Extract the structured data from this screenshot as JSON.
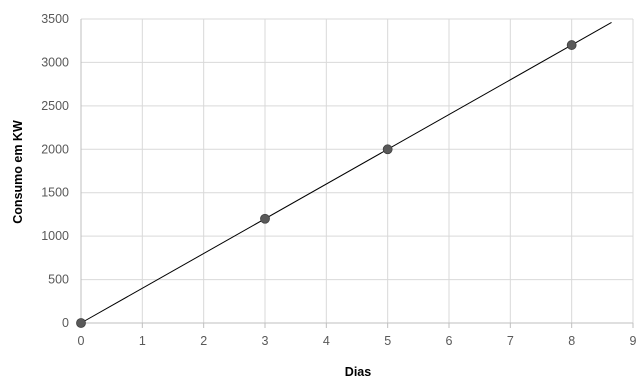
{
  "chart_data": {
    "type": "scatter",
    "title": "",
    "xlabel": "Dias",
    "ylabel": "Consumo em KW",
    "xlim": [
      0,
      9
    ],
    "ylim": [
      0,
      3500
    ],
    "x_ticks": [
      0,
      1,
      2,
      3,
      4,
      5,
      6,
      7,
      8,
      9
    ],
    "y_ticks": [
      0,
      500,
      1000,
      1500,
      2000,
      2500,
      3000,
      3500
    ],
    "x_tick_labels": [
      "0",
      "1",
      "2",
      "3",
      "4",
      "5",
      "6",
      "7",
      "8",
      "9"
    ],
    "y_tick_labels": [
      "0",
      "500",
      "1000",
      "1500",
      "2000",
      "2500",
      "3000",
      "3500"
    ],
    "grid": true,
    "legend": "none",
    "series": [
      {
        "x": [
          0,
          3,
          5,
          8
        ],
        "y": [
          0,
          1200,
          2000,
          3200
        ],
        "marker_color": "#595959"
      }
    ],
    "trendline": {
      "type": "linear",
      "x": [
        0,
        8.65
      ],
      "y": [
        0,
        3460
      ],
      "color": "#000000"
    },
    "colors": {
      "grid": "#d9d9d9",
      "axis": "#bfbfbf",
      "tick_label": "#595959",
      "background": "#ffffff"
    }
  }
}
